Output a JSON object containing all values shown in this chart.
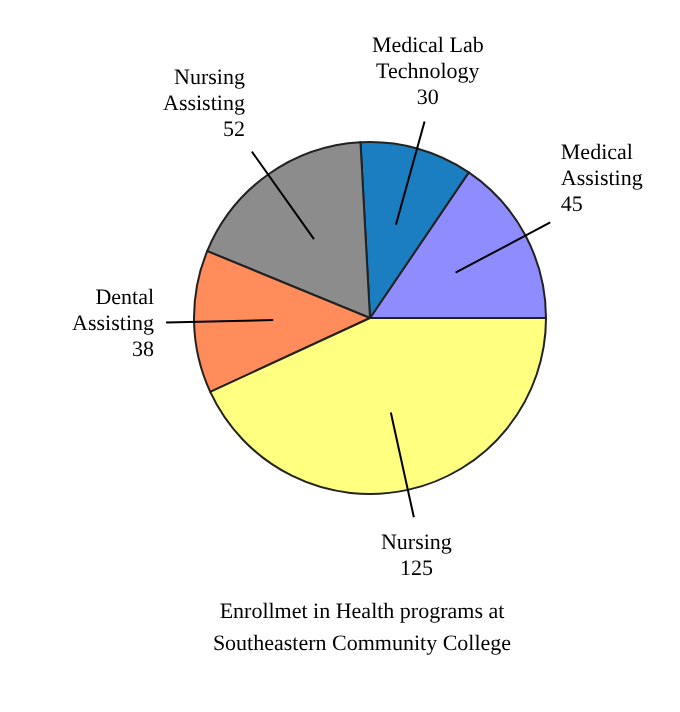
{
  "chart_data": {
    "type": "pie",
    "title": "Enrollmet in Health programs at Southeastern Community College",
    "categories": [
      "Medical Assisting",
      "Medical Lab Technology",
      "Nursing Assisting",
      "Dental Assisting",
      "Nursing"
    ],
    "values": [
      45,
      30,
      52,
      38,
      125
    ],
    "colors": [
      "#8f8cff",
      "#1a7ec0",
      "#8c8c8c",
      "#ff8c5a",
      "#ffff80"
    ],
    "data_labels": true
  }
}
